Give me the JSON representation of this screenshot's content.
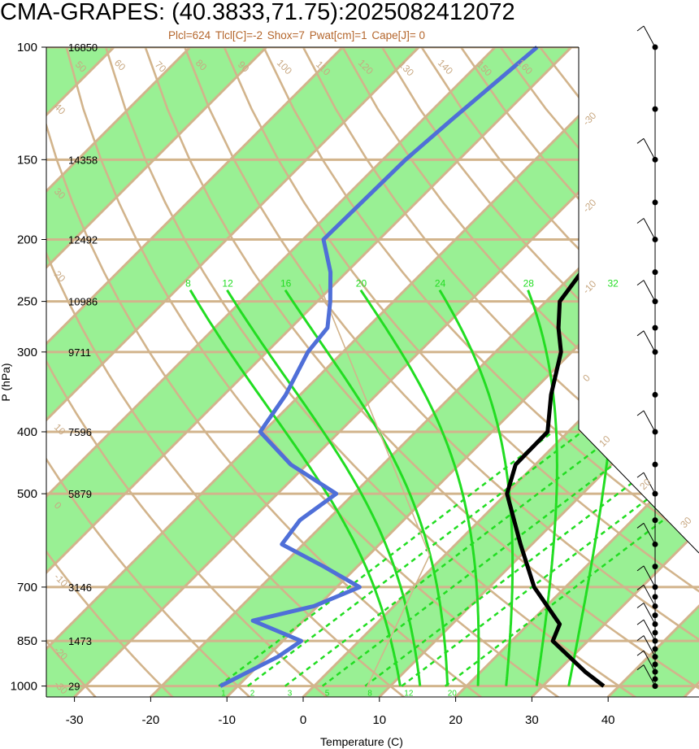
{
  "title": "CMA-GRAPES: (40.3833,71.75):2025082412072",
  "indices": [
    "Plcl=624",
    "Tlcl[C]=-2",
    "Shox=7",
    "Pwat[cm]=1",
    "Cape[J]= 0"
  ],
  "colors": {
    "band": "#99f094",
    "isotherm": "#d2b48c",
    "adiabat": "#22dd22",
    "dewpoint": "#4f6fd8",
    "temperature": "#000000",
    "index_text": "#b4662c"
  },
  "chart_data": {
    "type": "skew-t",
    "xlabel": "Temperature (C)",
    "ylabel": "P (hPa)",
    "x_ticks": [
      -30,
      -20,
      -10,
      0,
      10,
      20,
      30,
      40
    ],
    "x_tick_labels": [
      "-30",
      "-20",
      "-10",
      "0",
      "10",
      "20",
      "30",
      "40"
    ],
    "p_levels": [
      100,
      150,
      200,
      250,
      300,
      400,
      500,
      700,
      850,
      1000
    ],
    "p_level_labels": [
      "100",
      "150",
      "200",
      "250",
      "300",
      "400",
      "500",
      "700",
      "850",
      "1000"
    ],
    "heights": [
      "16850",
      "14358",
      "12492",
      "10986",
      "9711",
      "7596",
      "5879",
      "3146",
      "1473",
      "29"
    ],
    "isotherm_labels": [
      "-30",
      "-20",
      "-10",
      "0",
      "10",
      "20",
      "30"
    ],
    "theta_labels": [
      "50",
      "60",
      "70",
      "80",
      "90",
      "100",
      "110",
      "120",
      "130",
      "140",
      "150",
      "160",
      "40",
      "30",
      "20",
      "10",
      "0",
      "-10",
      "-20",
      "-30"
    ],
    "moist_adiabat_labels": [
      "8",
      "12",
      "16",
      "20",
      "24",
      "28",
      "32"
    ],
    "mixing_ratio_labels": [
      "1",
      "2",
      "3",
      "5",
      "8",
      "12",
      "20"
    ],
    "temperature": [
      {
        "p": 100,
        "t": -20.5
      },
      {
        "p": 120,
        "t": -23.2
      },
      {
        "p": 150,
        "t": -22.4
      },
      {
        "p": 200,
        "t": -20.3
      },
      {
        "p": 250,
        "t": -18.2
      },
      {
        "p": 275,
        "t": -14.9
      },
      {
        "p": 300,
        "t": -11.4
      },
      {
        "p": 350,
        "t": -7.1
      },
      {
        "p": 400,
        "t": -2.7
      },
      {
        "p": 450,
        "t": -2.6
      },
      {
        "p": 500,
        "t": 0.1
      },
      {
        "p": 600,
        "t": 8.5
      },
      {
        "p": 700,
        "t": 15.9
      },
      {
        "p": 800,
        "t": 24.1
      },
      {
        "p": 850,
        "t": 25.4
      },
      {
        "p": 950,
        "t": 33.7
      },
      {
        "p": 1000,
        "t": 38.0
      }
    ],
    "dewpoint": [
      {
        "p": 100,
        "t": -54.5
      },
      {
        "p": 130,
        "t": -56.2
      },
      {
        "p": 150,
        "t": -57.0
      },
      {
        "p": 200,
        "t": -57.3
      },
      {
        "p": 225,
        "t": -52.1
      },
      {
        "p": 250,
        "t": -48.3
      },
      {
        "p": 275,
        "t": -45.2
      },
      {
        "p": 300,
        "t": -44.6
      },
      {
        "p": 350,
        "t": -41.9
      },
      {
        "p": 400,
        "t": -40.4
      },
      {
        "p": 450,
        "t": -32.1
      },
      {
        "p": 500,
        "t": -22.3
      },
      {
        "p": 550,
        "t": -23.6
      },
      {
        "p": 600,
        "t": -22.8
      },
      {
        "p": 650,
        "t": -14.4
      },
      {
        "p": 700,
        "t": -7.0
      },
      {
        "p": 750,
        "t": -10.5
      },
      {
        "p": 790,
        "t": -16.6
      },
      {
        "p": 850,
        "t": -7.6
      },
      {
        "p": 900,
        "t": -8.6
      },
      {
        "p": 1000,
        "t": -12.3
      }
    ],
    "wind_levels": [
      100,
      125,
      150,
      175,
      200,
      225,
      250,
      275,
      300,
      350,
      400,
      450,
      500,
      550,
      600,
      650,
      700,
      725,
      750,
      775,
      800,
      825,
      850,
      875,
      900,
      925,
      950,
      975,
      1000
    ]
  }
}
